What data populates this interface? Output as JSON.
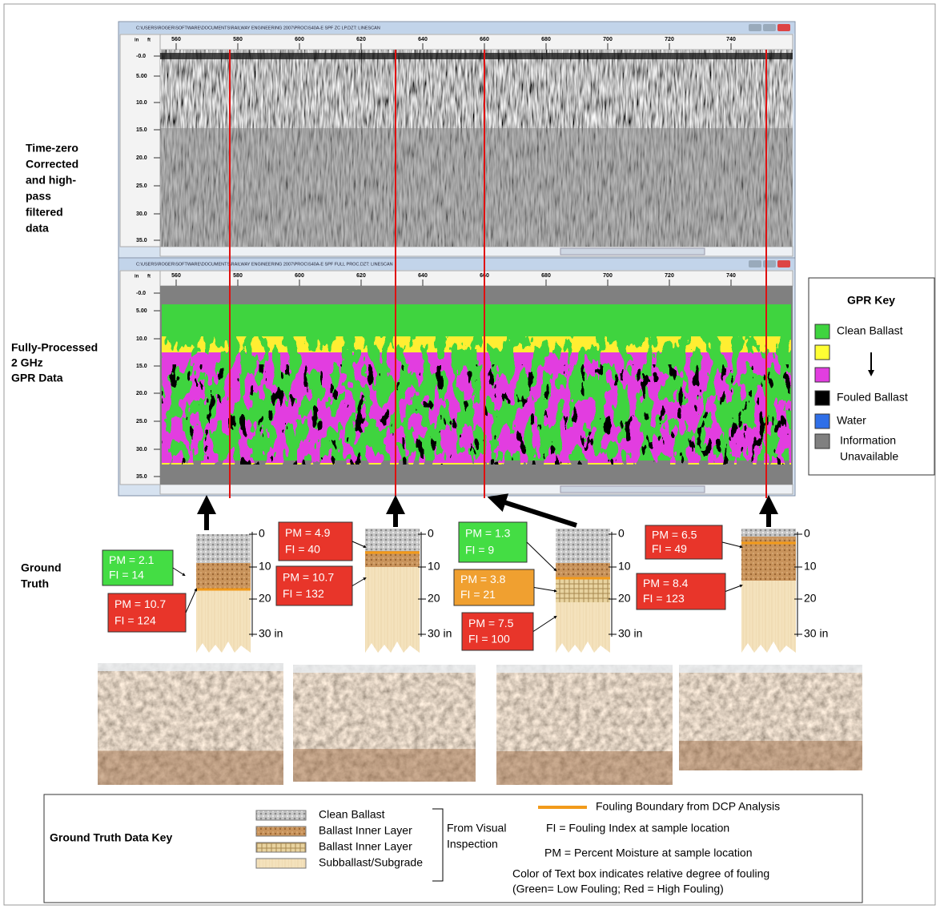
{
  "gpr_windows": [
    {
      "title": "C:\\USERS\\ROGER\\SOFTWARE\\DOCUMENTS\\RAILWAY ENGINEERING 2007\\PROC\\S40A-E SPF ZC LP.DZT: LINESCAN",
      "x_unit": "ft",
      "y_unit": "in",
      "x_ticks": [
        "560",
        "580",
        "600",
        "620",
        "640",
        "660",
        "680",
        "700",
        "720",
        "740"
      ],
      "y_ticks": [
        "-0.0",
        "5.00",
        "10.0",
        "15.0",
        "20.0",
        "25.0",
        "30.0",
        "35.0"
      ]
    },
    {
      "title": "C:\\USERS\\ROGER\\SOFTWARE\\DOCUMENTS\\RAILWAY ENGINEERING 2007\\PROC\\S40A-E SPF FULL PROC.DZT: LINESCAN",
      "x_unit": "ft",
      "y_unit": "in",
      "x_ticks": [
        "560",
        "580",
        "600",
        "620",
        "640",
        "660",
        "680",
        "700",
        "720",
        "740"
      ],
      "y_ticks": [
        "-0.0",
        "5.00",
        "10.0",
        "15.0",
        "20.0",
        "25.0",
        "30.0",
        "35.0"
      ]
    }
  ],
  "panel_labels": {
    "time_zero": [
      "Time-zero",
      "Corrected",
      "and high-",
      "pass",
      "filtered",
      "data"
    ],
    "fully_processed": [
      "Fully-Processed",
      "2 GHz",
      "GPR Data"
    ],
    "ground_truth": [
      "Ground",
      "Truth"
    ]
  },
  "gpr_key": {
    "title": "GPR Key",
    "items": [
      {
        "label": "Clean Ballast",
        "color": "#3fd43f"
      },
      {
        "color": "#ffff33"
      },
      {
        "color": "#e23ee0"
      },
      {
        "label": "Fouled Ballast",
        "color": "#000000"
      },
      {
        "label": "Water",
        "color": "#2f6fe8"
      },
      {
        "label": [
          "Information",
          "Unavailable"
        ],
        "color": "#808080"
      }
    ]
  },
  "ground_truth": {
    "depth_labels": [
      "0",
      "10",
      "20",
      "30 in"
    ],
    "samples": [
      {
        "boxes": [
          {
            "pm": "PM = 2.1",
            "fi": "FI   = 14",
            "color": "#44dd44"
          },
          {
            "pm": "PM = 10.7",
            "fi": "FI   = 124",
            "color": "#e8352a"
          }
        ]
      },
      {
        "boxes": [
          {
            "pm": "PM = 4.9",
            "fi": "FI   = 40",
            "color": "#e8352a"
          },
          {
            "pm": "PM = 10.7",
            "fi": "FI   = 132",
            "color": "#e8352a"
          }
        ]
      },
      {
        "boxes": [
          {
            "pm": "PM = 1.3",
            "fi": "FI   = 9",
            "color": "#44dd44"
          },
          {
            "pm": "PM = 3.8",
            "fi": "FI   = 21",
            "color": "#f0a030"
          },
          {
            "pm": "PM = 7.5",
            "fi": "FI   = 100",
            "color": "#e8352a"
          }
        ]
      },
      {
        "boxes": [
          {
            "pm": "PM = 6.5",
            "fi": "FI   = 49",
            "color": "#e8352a"
          },
          {
            "pm": "PM = 8.4",
            "fi": "FI   = 123",
            "color": "#e8352a"
          }
        ]
      }
    ]
  },
  "data_key": {
    "title": "Ground Truth Data Key",
    "layers": [
      "Clean Ballast",
      "Ballast Inner Layer",
      "Ballast Inner Layer",
      "Subballast/Subgrade"
    ],
    "source": [
      "From Visual",
      "Inspection"
    ],
    "boundary": "Fouling Boundary from DCP Analysis",
    "fi_note": "FI = Fouling Index at sample location",
    "pm_note": "PM = Percent Moisture at sample location",
    "color_note": [
      "Color of Text box indicates relative degree of fouling",
      "(Green= Low Fouling; Red = High Fouling)"
    ]
  }
}
